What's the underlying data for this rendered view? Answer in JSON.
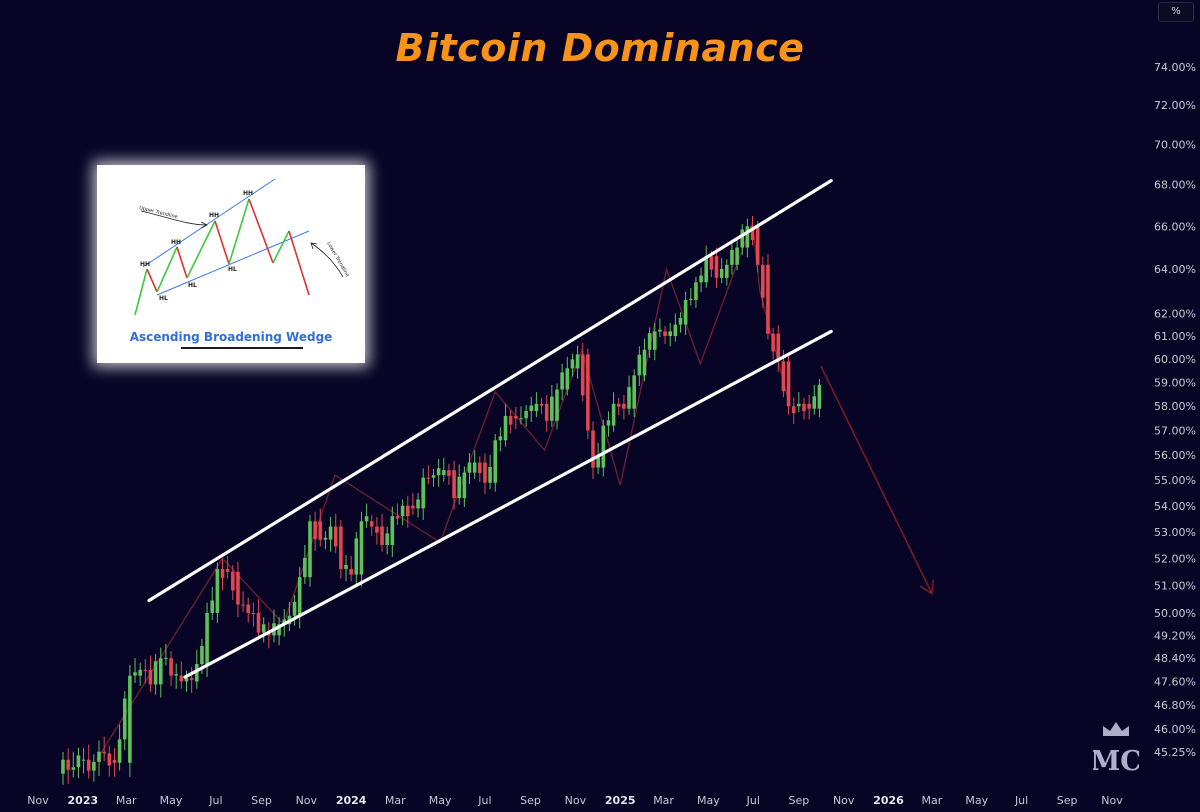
{
  "title": "Bitcoin Dominance",
  "axis_unit": "%",
  "inset": {
    "caption": "Ascending Broadening Wedge",
    "labels": {
      "upper_trendline": "Upper Trendline",
      "lower_trendline": "Lower Trendline",
      "hh": "HH",
      "hl": "HL"
    }
  },
  "watermark_text": "MC",
  "colors": {
    "background": "#070426",
    "title": "#f7931a",
    "up_candle": "#5ec25a",
    "down_candle": "#e0474f",
    "trendline": "#ffffff",
    "projection": "#7a1a26",
    "axis_text": "#c9c9d4"
  },
  "chart_data": {
    "type": "candlestick",
    "title": "Bitcoin Dominance",
    "xlabel": "",
    "ylabel": "",
    "y_unit": "%",
    "y_scale": "log",
    "ylim": [
      44.7,
      75.5
    ],
    "x_tick_labels": [
      "Nov",
      "2023",
      "Mar",
      "May",
      "Jul",
      "Sep",
      "Nov",
      "2024",
      "Mar",
      "May",
      "Jul",
      "Sep",
      "Nov",
      "2025",
      "Mar",
      "May",
      "Jul",
      "Sep",
      "Nov",
      "2026",
      "Mar",
      "May",
      "Jul",
      "Sep",
      "Nov"
    ],
    "x_tick_dates": [
      "2022-11-01",
      "2023-01-01",
      "2023-03-01",
      "2023-05-01",
      "2023-07-01",
      "2023-09-01",
      "2023-11-01",
      "2024-01-01",
      "2024-03-01",
      "2024-05-01",
      "2024-07-01",
      "2024-09-01",
      "2024-11-01",
      "2025-01-01",
      "2025-03-01",
      "2025-05-01",
      "2025-07-01",
      "2025-09-01",
      "2025-11-01",
      "2026-01-01",
      "2026-03-01",
      "2026-05-01",
      "2026-07-01",
      "2026-09-01",
      "2026-11-01"
    ],
    "y_tick_labels": [
      "74.00%",
      "72.00%",
      "70.00%",
      "68.00%",
      "66.00%",
      "64.00%",
      "62.00%",
      "61.00%",
      "60.00%",
      "59.00%",
      "58.00%",
      "57.00%",
      "56.00%",
      "55.00%",
      "54.00%",
      "53.00%",
      "52.00%",
      "51.00%",
      "50.00%",
      "49.20%",
      "48.40%",
      "47.60%",
      "46.80%",
      "46.00%",
      "45.25%"
    ],
    "y_tick_values": [
      74,
      72,
      70,
      68,
      66,
      64,
      62,
      61,
      60,
      59,
      58,
      57,
      56,
      55,
      54,
      53,
      52,
      51,
      50,
      49.2,
      48.4,
      47.6,
      46.8,
      46,
      45.25
    ],
    "weekly_close": [
      [
        "2022-12-05",
        45.0
      ],
      [
        "2023-01-02",
        45.0
      ],
      [
        "2023-02-13",
        44.9
      ],
      [
        "2023-03-06",
        47.8
      ],
      [
        "2023-03-20",
        48.0
      ],
      [
        "2023-04-03",
        47.5
      ],
      [
        "2023-04-17",
        48.4
      ],
      [
        "2023-05-01",
        47.8
      ],
      [
        "2023-05-15",
        47.6
      ],
      [
        "2023-06-05",
        48.2
      ],
      [
        "2023-06-19",
        50.0
      ],
      [
        "2023-07-03",
        51.6
      ],
      [
        "2023-07-17",
        51.5
      ],
      [
        "2023-07-31",
        50.3
      ],
      [
        "2023-08-14",
        50.0
      ],
      [
        "2023-08-28",
        49.3
      ],
      [
        "2023-09-11",
        49.2
      ],
      [
        "2023-09-25",
        49.6
      ],
      [
        "2023-10-09",
        49.9
      ],
      [
        "2023-10-23",
        51.3
      ],
      [
        "2023-11-06",
        53.4
      ],
      [
        "2023-11-20",
        52.7
      ],
      [
        "2023-12-04",
        53.2
      ],
      [
        "2023-12-18",
        51.6
      ],
      [
        "2024-01-01",
        51.4
      ],
      [
        "2024-01-15",
        53.4
      ],
      [
        "2024-01-29",
        53.2
      ],
      [
        "2024-02-12",
        52.5
      ],
      [
        "2024-02-26",
        53.6
      ],
      [
        "2024-03-11",
        54.0
      ],
      [
        "2024-03-25",
        53.9
      ],
      [
        "2024-04-08",
        55.1
      ],
      [
        "2024-04-22",
        55.2
      ],
      [
        "2024-05-06",
        55.4
      ],
      [
        "2024-05-20",
        54.3
      ],
      [
        "2024-06-03",
        55.3
      ],
      [
        "2024-06-17",
        55.7
      ],
      [
        "2024-07-01",
        54.9
      ],
      [
        "2024-07-15",
        56.6
      ],
      [
        "2024-07-29",
        57.6
      ],
      [
        "2024-08-12",
        57.5
      ],
      [
        "2024-08-26",
        57.8
      ],
      [
        "2024-09-09",
        58.1
      ],
      [
        "2024-09-23",
        57.4
      ],
      [
        "2024-10-07",
        58.7
      ],
      [
        "2024-10-21",
        59.6
      ],
      [
        "2024-11-04",
        60.2
      ],
      [
        "2024-11-18",
        57.0
      ],
      [
        "2024-11-25",
        55.5
      ],
      [
        "2024-12-09",
        57.2
      ],
      [
        "2024-12-23",
        58.1
      ],
      [
        "2025-01-06",
        57.9
      ],
      [
        "2025-01-20",
        59.3
      ],
      [
        "2025-02-03",
        60.4
      ],
      [
        "2025-02-17",
        61.2
      ],
      [
        "2025-03-03",
        61.0
      ],
      [
        "2025-03-17",
        61.5
      ],
      [
        "2025-03-31",
        62.6
      ],
      [
        "2025-04-14",
        63.4
      ],
      [
        "2025-04-28",
        64.6
      ],
      [
        "2025-05-12",
        63.6
      ],
      [
        "2025-05-26",
        64.2
      ],
      [
        "2025-06-09",
        65.0
      ],
      [
        "2025-06-23",
        66.0
      ],
      [
        "2025-07-07",
        64.2
      ],
      [
        "2025-07-21",
        61.1
      ],
      [
        "2025-08-04",
        59.9
      ],
      [
        "2025-08-18",
        58.0
      ],
      [
        "2025-09-01",
        58.1
      ],
      [
        "2025-09-15",
        57.9
      ],
      [
        "2025-09-29",
        58.9
      ]
    ],
    "upper_trendline": [
      [
        "2023-04-01",
        50.45
      ],
      [
        "2025-10-15",
        68.2
      ]
    ],
    "lower_trendline": [
      [
        "2023-05-20",
        47.75
      ],
      [
        "2025-10-15",
        61.2
      ]
    ],
    "projection_path": [
      [
        "2025-10-01",
        59.7
      ],
      [
        "2026-03-01",
        50.7
      ]
    ]
  }
}
